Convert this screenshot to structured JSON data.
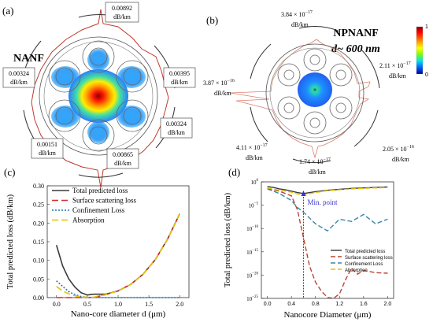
{
  "panels": {
    "a": {
      "label": "(a)",
      "title": "NANF",
      "annotations": [
        {
          "value": "0.00892",
          "unit": "dB/km"
        },
        {
          "value": "0.00395",
          "unit": "dB/km"
        },
        {
          "value": "0.00324",
          "unit": "dB/km"
        },
        {
          "value": "0.00865",
          "unit": "dB/km"
        },
        {
          "value": "0.00151",
          "unit": "dB/km"
        },
        {
          "value": "0.00324",
          "unit": "dB/km"
        }
      ]
    },
    "b": {
      "label": "(b)",
      "title": "NPNANF",
      "subtitle": "d~ 600 nm",
      "annotations": [
        {
          "value": "3.84 × 10",
          "exp": "−17",
          "unit": "dB/km"
        },
        {
          "value": "2.11 × 10",
          "exp": "−17",
          "unit": "dB/km"
        },
        {
          "value": "2.05 × 10",
          "exp": "−16",
          "unit": "dB/km"
        },
        {
          "value": "1.74 × 10",
          "exp": "−17",
          "unit": "dB/km"
        },
        {
          "value": "4.11 × 10",
          "exp": "−17",
          "unit": "dB/km"
        },
        {
          "value": "3.87 × 10",
          "exp": "−16",
          "unit": "dB/km"
        }
      ],
      "colorbar": {
        "max": "1",
        "min": "0",
        "colors": [
          "#8b0000",
          "#ff0000",
          "#ff8c00",
          "#ffff00",
          "#7fff00",
          "#00e5e5",
          "#0060ff",
          "#00008b"
        ]
      }
    }
  },
  "chart_data": [
    {
      "panel": "(c)",
      "type": "line",
      "xlabel": "Nano-core diameter d (μm)",
      "ylabel": "Total predicted loss (dB/km)",
      "xlim": [
        -0.15,
        2.15
      ],
      "ylim": [
        0,
        0.3
      ],
      "xticks": [
        0.0,
        0.5,
        1.0,
        1.5,
        2.0
      ],
      "xtick_labels": [
        "0.0",
        "0.5",
        "1.0",
        "1.5",
        "2.0"
      ],
      "yticks": [
        0.0,
        0.05,
        0.1,
        0.15,
        0.2,
        0.25,
        0.3
      ],
      "ytick_labels": [
        "0.00",
        "0.05",
        "0.10",
        "0.15",
        "0.20",
        "0.25",
        "0.30"
      ],
      "legend_position": "top-left",
      "grid": false,
      "series": [
        {
          "name": "Total predicted loss",
          "color": "#3a3a3a",
          "dash": "solid",
          "x": [
            0.0,
            0.1,
            0.2,
            0.3,
            0.4,
            0.5,
            0.6,
            0.8,
            1.0,
            1.2,
            1.4,
            1.6,
            1.8,
            2.0
          ],
          "y": [
            0.141,
            0.085,
            0.05,
            0.028,
            0.013,
            0.007,
            0.009,
            0.009,
            0.018,
            0.035,
            0.062,
            0.101,
            0.156,
            0.225
          ]
        },
        {
          "name": "Surface scattering loss",
          "color": "#d62728",
          "dash": "8,4",
          "x": [
            0.0,
            0.1,
            0.2,
            0.3,
            0.4,
            0.5,
            0.6,
            0.8,
            1.0,
            1.2,
            1.4,
            1.6,
            1.8,
            2.0
          ],
          "y": [
            0.0,
            0.0,
            0.0,
            0.0,
            0.0,
            0.0,
            0.0,
            0.008,
            0.018,
            0.035,
            0.062,
            0.101,
            0.156,
            0.225
          ]
        },
        {
          "name": "Confinement Loss",
          "color": "#1f77b4",
          "dash": "2,2",
          "x": [
            0.0,
            0.1,
            0.2,
            0.3,
            0.4,
            0.5,
            0.6,
            0.8,
            1.0,
            1.5,
            2.0
          ],
          "y": [
            0.045,
            0.03,
            0.016,
            0.008,
            0.003,
            0.001,
            0.0,
            0.0,
            0.0,
            0.0,
            0.0
          ]
        },
        {
          "name": "Absorption",
          "color": "#e5c200",
          "dash": "8,4",
          "x": [
            0.0,
            0.1,
            0.2,
            0.3,
            0.4,
            0.5,
            0.6,
            0.8,
            1.0,
            1.2,
            1.4,
            1.6,
            1.8,
            2.0
          ],
          "y": [
            0.03,
            0.018,
            0.01,
            0.005,
            0.002,
            0.001,
            0.001,
            0.008,
            0.018,
            0.035,
            0.062,
            0.101,
            0.156,
            0.225
          ]
        }
      ]
    },
    {
      "panel": "(d)",
      "type": "line",
      "xlabel": "Nanocore Diameter (μm)",
      "ylabel": "Total predicted loss (dB/km)",
      "xlim": [
        -0.1,
        2.1
      ],
      "ylim": [
        -25,
        0
      ],
      "yscale": "log",
      "xticks": [
        0.0,
        0.4,
        0.8,
        1.2,
        1.6,
        2.0
      ],
      "xtick_labels": [
        "0.0",
        "0.4",
        "0.8",
        "1.2",
        "1.6",
        "2.0"
      ],
      "yticks": [
        0,
        -5,
        -10,
        -15,
        -20,
        -25
      ],
      "ytick_labels": [
        "10^0",
        "10^-5",
        "10^-10",
        "10^-15",
        "10^-20",
        "10^-25"
      ],
      "legend_position": "lower-right",
      "grid": false,
      "annotation": {
        "text": "Min. point",
        "x": 0.6,
        "color": "#3333cc"
      },
      "series": [
        {
          "name": "Total predicted loss",
          "color": "#3a3a3a",
          "dash": "solid",
          "x": [
            0.0,
            0.1,
            0.2,
            0.3,
            0.4,
            0.5,
            0.6,
            0.8,
            1.0,
            1.2,
            1.4,
            1.6,
            1.8,
            2.0
          ],
          "y": [
            -1.0,
            -1.2,
            -1.5,
            -1.7,
            -2.0,
            -2.3,
            -2.5,
            -2.1,
            -1.8,
            -1.6,
            -1.4,
            -1.3,
            -1.2,
            -1.1
          ]
        },
        {
          "name": "Surface scattering loss",
          "color": "#b5473a",
          "dash": "6,3",
          "x": [
            0.0,
            0.2,
            0.3,
            0.4,
            0.5,
            0.6,
            0.7,
            0.8,
            0.9,
            1.0,
            1.1,
            1.2,
            1.3,
            1.4,
            1.5,
            1.6,
            1.8,
            2.0
          ],
          "y": [
            -1.5,
            -2.0,
            -2.5,
            -3.0,
            -6.0,
            -12.0,
            -18.0,
            -21.5,
            -23.5,
            -24.8,
            -25.2,
            -24.0,
            -21.0,
            -18.5,
            -19.8,
            -19.0,
            -19.5,
            -19.6
          ]
        },
        {
          "name": "Confinement Loss",
          "color": "#3d86a6",
          "dash": "6,3",
          "x": [
            0.0,
            0.2,
            0.4,
            0.5,
            0.6,
            0.8,
            1.0,
            1.2,
            1.4,
            1.6,
            1.8,
            2.0
          ],
          "y": [
            -1.5,
            -2.5,
            -4.0,
            -5.5,
            -6.5,
            -9.0,
            -10.5,
            -8.0,
            -8.5,
            -7.0,
            -9.0,
            -8.0
          ]
        },
        {
          "name": "Absorption",
          "color": "#e5c200",
          "dash": "6,3",
          "x": [
            0.0,
            0.2,
            0.4,
            0.5,
            0.6,
            0.8,
            1.0,
            1.2,
            1.4,
            1.6,
            1.8,
            2.0
          ],
          "y": [
            -1.3,
            -1.8,
            -2.2,
            -2.6,
            -2.8,
            -2.3,
            -1.9,
            -1.7,
            -1.5,
            -1.4,
            -1.3,
            -1.2
          ]
        }
      ]
    }
  ]
}
